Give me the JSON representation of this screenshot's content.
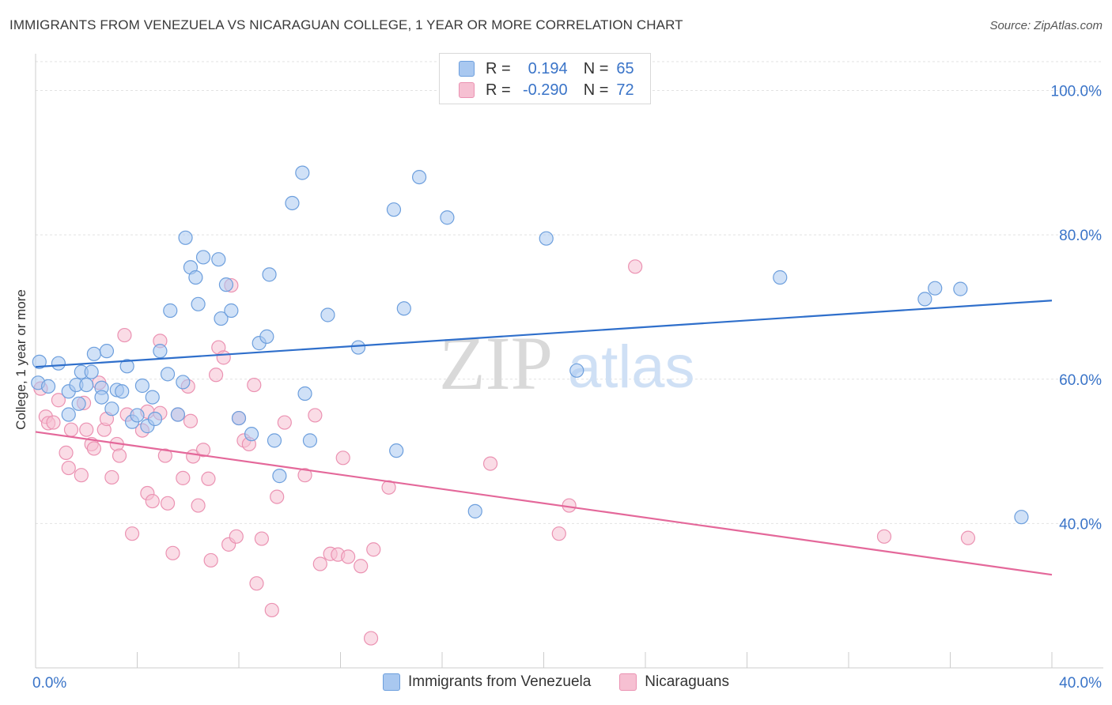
{
  "title": "IMMIGRANTS FROM VENEZUELA VS NICARAGUAN COLLEGE, 1 YEAR OR MORE CORRELATION CHART",
  "source": "Source: ZipAtlas.com",
  "watermark": {
    "zip": "ZIP",
    "atlas": "atlas"
  },
  "colors": {
    "blue_fill": "#a9c8f0",
    "blue_stroke": "#6d9fdd",
    "blue_line": "#2f6fcb",
    "pink_fill": "#f6c0d2",
    "pink_stroke": "#eb92b2",
    "pink_line": "#e4689a",
    "axis_text": "#3a74c8",
    "grid": "#e2e2e2"
  },
  "legend": {
    "rows": [
      {
        "r_label": "R =",
        "r_value": "0.194",
        "n_label": "N =",
        "n_value": "65"
      },
      {
        "r_label": "R =",
        "r_value": "-0.290",
        "n_label": "N =",
        "n_value": "72"
      }
    ]
  },
  "bottom_legend": {
    "blue": "Immigrants from Venezuela",
    "pink": "Nicaraguans"
  },
  "chart_data": {
    "type": "scatter",
    "title": "IMMIGRANTS FROM VENEZUELA VS NICARAGUAN COLLEGE, 1 YEAR OR MORE CORRELATION CHART",
    "xlabel": "",
    "ylabel": "College, 1 year or more",
    "xlim": [
      0,
      40
    ],
    "ylim": [
      20,
      104
    ],
    "x_tick_labels": [
      "0.0%",
      "40.0%"
    ],
    "y_ticks": [
      40,
      60,
      80,
      100
    ],
    "y_tick_labels": [
      "40.0%",
      "60.0%",
      "80.0%",
      "100.0%"
    ],
    "series": [
      {
        "name": "Immigrants from Venezuela",
        "color": "#6d9fdd",
        "trend": {
          "x": [
            0,
            40
          ],
          "y": [
            61.7,
            70.9
          ]
        },
        "points": [
          [
            0.1,
            59.5
          ],
          [
            0.15,
            62.4
          ],
          [
            0.5,
            59.0
          ],
          [
            0.9,
            62.2
          ],
          [
            1.3,
            58.3
          ],
          [
            1.7,
            56.6
          ],
          [
            1.3,
            55.1
          ],
          [
            1.6,
            59.2
          ],
          [
            1.8,
            61.0
          ],
          [
            2.2,
            61.0
          ],
          [
            2.0,
            59.2
          ],
          [
            2.3,
            63.5
          ],
          [
            2.6,
            58.8
          ],
          [
            2.6,
            57.5
          ],
          [
            2.8,
            63.9
          ],
          [
            3.0,
            55.9
          ],
          [
            3.2,
            58.5
          ],
          [
            3.4,
            58.3
          ],
          [
            3.6,
            61.8
          ],
          [
            3.8,
            54.1
          ],
          [
            4.0,
            55.0
          ],
          [
            4.2,
            59.1
          ],
          [
            4.4,
            53.5
          ],
          [
            4.6,
            57.5
          ],
          [
            4.7,
            54.5
          ],
          [
            4.9,
            63.9
          ],
          [
            5.2,
            60.7
          ],
          [
            5.3,
            69.5
          ],
          [
            5.6,
            55.1
          ],
          [
            5.8,
            59.6
          ],
          [
            5.9,
            79.6
          ],
          [
            6.1,
            75.5
          ],
          [
            6.3,
            74.1
          ],
          [
            6.4,
            70.4
          ],
          [
            6.6,
            76.9
          ],
          [
            7.2,
            76.6
          ],
          [
            7.3,
            68.4
          ],
          [
            7.5,
            73.1
          ],
          [
            7.7,
            69.5
          ],
          [
            8.0,
            54.6
          ],
          [
            8.5,
            52.4
          ],
          [
            8.8,
            65.0
          ],
          [
            9.1,
            65.9
          ],
          [
            9.2,
            74.5
          ],
          [
            9.4,
            51.5
          ],
          [
            9.6,
            46.6
          ],
          [
            10.1,
            84.4
          ],
          [
            10.5,
            88.6
          ],
          [
            10.6,
            58.0
          ],
          [
            10.8,
            51.5
          ],
          [
            11.5,
            68.9
          ],
          [
            12.7,
            64.4
          ],
          [
            14.1,
            83.5
          ],
          [
            14.2,
            50.1
          ],
          [
            14.5,
            69.8
          ],
          [
            15.1,
            88.0
          ],
          [
            16.2,
            82.4
          ],
          [
            17.3,
            41.7
          ],
          [
            20.1,
            79.5
          ],
          [
            21.3,
            61.2
          ],
          [
            29.3,
            74.1
          ],
          [
            35.0,
            71.1
          ],
          [
            35.4,
            72.6
          ],
          [
            36.4,
            72.5
          ],
          [
            38.8,
            40.9
          ]
        ]
      },
      {
        "name": "Nicaraguans",
        "color": "#eb92b2",
        "trend": {
          "x": [
            0,
            40
          ],
          "y": [
            52.7,
            32.9
          ]
        },
        "points": [
          [
            0.2,
            58.7
          ],
          [
            0.4,
            54.8
          ],
          [
            0.5,
            53.9
          ],
          [
            0.7,
            54.0
          ],
          [
            0.9,
            57.1
          ],
          [
            1.2,
            49.8
          ],
          [
            1.3,
            47.7
          ],
          [
            1.4,
            53.0
          ],
          [
            1.8,
            46.7
          ],
          [
            1.9,
            56.7
          ],
          [
            2.0,
            53.0
          ],
          [
            2.2,
            51.0
          ],
          [
            2.3,
            50.4
          ],
          [
            2.5,
            59.5
          ],
          [
            2.7,
            53.0
          ],
          [
            2.8,
            54.5
          ],
          [
            3.0,
            46.4
          ],
          [
            3.2,
            51.0
          ],
          [
            3.3,
            49.4
          ],
          [
            3.5,
            66.1
          ],
          [
            3.6,
            55.1
          ],
          [
            3.8,
            38.6
          ],
          [
            4.2,
            52.9
          ],
          [
            4.4,
            55.5
          ],
          [
            4.4,
            44.2
          ],
          [
            4.6,
            43.1
          ],
          [
            4.9,
            55.3
          ],
          [
            4.9,
            65.3
          ],
          [
            5.1,
            49.4
          ],
          [
            5.2,
            42.8
          ],
          [
            5.4,
            35.9
          ],
          [
            5.6,
            55.1
          ],
          [
            5.8,
            46.3
          ],
          [
            6.0,
            59.0
          ],
          [
            6.1,
            54.2
          ],
          [
            6.2,
            49.3
          ],
          [
            6.4,
            42.5
          ],
          [
            6.6,
            50.2
          ],
          [
            6.8,
            46.2
          ],
          [
            6.9,
            34.9
          ],
          [
            7.1,
            60.6
          ],
          [
            7.2,
            64.4
          ],
          [
            7.4,
            63.0
          ],
          [
            7.6,
            37.1
          ],
          [
            7.7,
            73.0
          ],
          [
            7.9,
            38.2
          ],
          [
            8.0,
            54.6
          ],
          [
            8.2,
            51.5
          ],
          [
            8.4,
            51.0
          ],
          [
            8.6,
            59.2
          ],
          [
            8.7,
            31.7
          ],
          [
            8.9,
            37.9
          ],
          [
            9.3,
            28.0
          ],
          [
            9.5,
            43.7
          ],
          [
            9.8,
            54.0
          ],
          [
            10.6,
            46.7
          ],
          [
            11.0,
            55.0
          ],
          [
            11.2,
            34.4
          ],
          [
            11.6,
            35.8
          ],
          [
            11.9,
            35.7
          ],
          [
            12.1,
            49.1
          ],
          [
            12.3,
            35.4
          ],
          [
            12.8,
            34.1
          ],
          [
            13.3,
            36.4
          ],
          [
            13.2,
            24.1
          ],
          [
            13.9,
            45.0
          ],
          [
            17.9,
            48.3
          ],
          [
            20.6,
            38.6
          ],
          [
            21.0,
            42.5
          ],
          [
            23.6,
            75.6
          ],
          [
            33.4,
            38.2
          ],
          [
            36.7,
            38.0
          ]
        ]
      }
    ]
  }
}
